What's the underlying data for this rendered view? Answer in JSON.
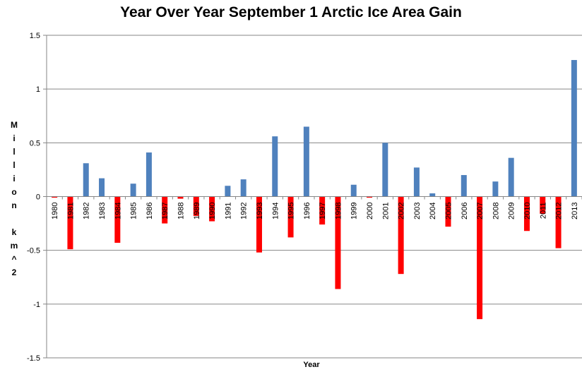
{
  "chart_data": {
    "type": "bar",
    "title": "Year Over Year September 1 Arctic Ice Area Gain",
    "xlabel": "Year",
    "ylabel": "Million km^2",
    "ylabel_lines": [
      "M",
      "i",
      "l",
      "l",
      "i",
      "o",
      "n",
      "",
      "k",
      "m",
      "^",
      "2"
    ],
    "ylim": [
      -1.5,
      1.5
    ],
    "yticks": [
      -1.5,
      -1,
      -0.5,
      0,
      0.5,
      1,
      1.5
    ],
    "ytick_labels": [
      "-1.5",
      "-1",
      "-0.5",
      "0",
      "0.5",
      "1",
      "1.5"
    ],
    "grid": true,
    "legend": "none",
    "colors": {
      "positive": "#4f81bd",
      "negative": "#ff0000",
      "grid": "#868686",
      "axis": "#868686"
    },
    "categories": [
      "1980",
      "1981",
      "1982",
      "1983",
      "1984",
      "1985",
      "1986",
      "1987",
      "1988",
      "1989",
      "1990",
      "1991",
      "1992",
      "1993",
      "1994",
      "1995",
      "1996",
      "1997",
      "1998",
      "1999",
      "2000",
      "2001",
      "2002",
      "2003",
      "2004",
      "2005",
      "2006",
      "2007",
      "2008",
      "2009",
      "2010",
      "2011",
      "2012",
      "2013"
    ],
    "values": [
      -0.01,
      -0.49,
      0.31,
      0.17,
      -0.43,
      0.12,
      0.41,
      -0.25,
      -0.02,
      -0.18,
      -0.23,
      0.1,
      0.16,
      -0.52,
      0.56,
      -0.38,
      0.65,
      -0.26,
      -0.86,
      0.11,
      -0.01,
      0.5,
      -0.72,
      0.27,
      0.03,
      -0.28,
      0.2,
      -1.14,
      0.14,
      0.36,
      -0.32,
      -0.16,
      -0.48,
      1.27
    ]
  }
}
